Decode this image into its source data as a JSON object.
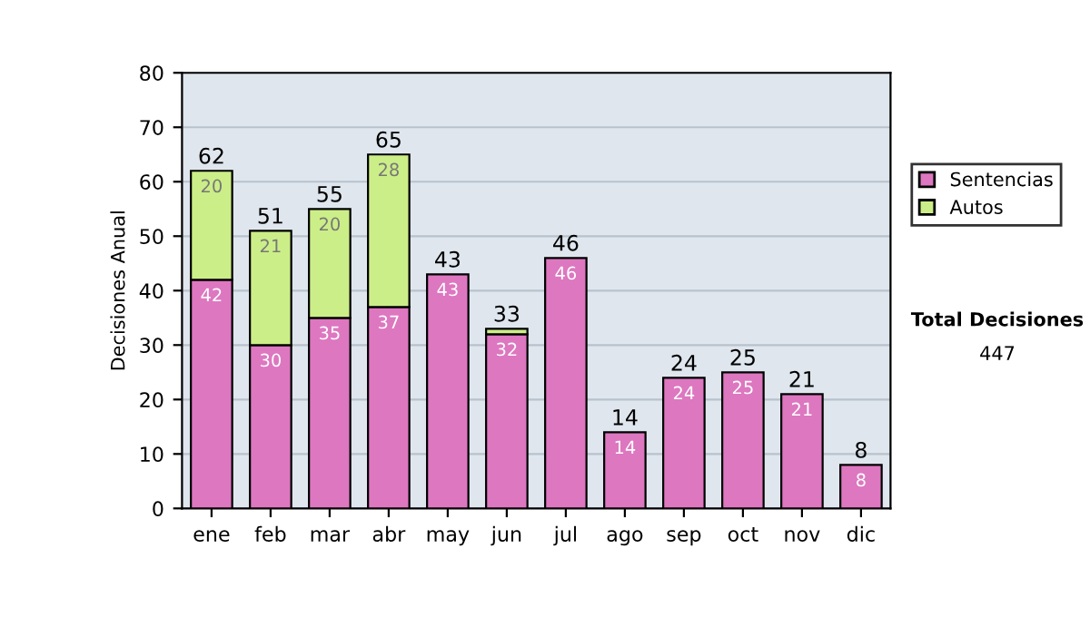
{
  "chart_data": {
    "type": "bar",
    "ylabel": "Decisiones Anual",
    "categories": [
      "ene",
      "feb",
      "mar",
      "abr",
      "may",
      "jun",
      "jul",
      "ago",
      "sep",
      "oct",
      "nov",
      "dic"
    ],
    "stacked": true,
    "series": [
      {
        "name": "Sentencias",
        "color": "#dd77c0",
        "values": [
          42,
          30,
          35,
          37,
          43,
          32,
          46,
          14,
          24,
          25,
          21,
          8
        ],
        "value_labels": [
          "42",
          "30",
          "35",
          "37",
          "43",
          "32",
          "46",
          "14",
          "24",
          "25",
          "21",
          "8"
        ]
      },
      {
        "name": "Autos",
        "color": "#ccee88",
        "values": [
          20,
          21,
          20,
          28,
          null,
          1,
          null,
          null,
          null,
          null,
          null,
          null
        ],
        "value_labels": [
          "20",
          "21",
          "20",
          "28",
          null,
          null,
          null,
          null,
          null,
          null,
          null,
          null
        ]
      }
    ],
    "totals": [
      "62",
      "51",
      "55",
      "65",
      "43",
      "33",
      "46",
      "14",
      "24",
      "25",
      "21",
      "8"
    ],
    "ylim": [
      0,
      80
    ],
    "yticks": [
      0,
      10,
      20,
      30,
      40,
      50,
      60,
      70,
      80
    ],
    "grid": "y",
    "legend": "right",
    "annotations": [
      "Total Decisiones",
      "447"
    ]
  }
}
